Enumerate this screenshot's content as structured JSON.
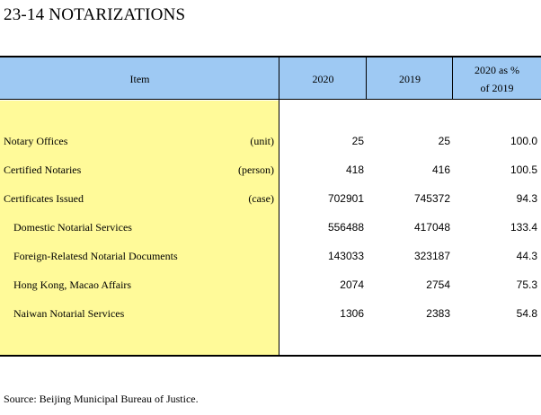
{
  "title": "23-14  NOTARIZATIONS",
  "header": {
    "item": "Item",
    "col2020": "2020",
    "col2019": "2019",
    "pct_line1": "2020 as %",
    "pct_line2": "of 2019"
  },
  "rows": [
    {
      "label": "Notary Offices",
      "unit": "(unit)",
      "v2020": "25",
      "v2019": "25",
      "pct": "100.0"
    },
    {
      "label": "Certified Notaries",
      "unit": "(person)",
      "v2020": "418",
      "v2019": "416",
      "pct": "100.5"
    },
    {
      "label": "Certificates Issued",
      "unit": "(case)",
      "v2020": "702901",
      "v2019": "745372",
      "pct": "94.3"
    },
    {
      "label": "Domestic Notarial Services",
      "unit": "",
      "v2020": "556488",
      "v2019": "417048",
      "pct": "133.4"
    },
    {
      "label": "Foreign-Relatesd Notarial Documents",
      "unit": "",
      "v2020": "143033",
      "v2019": "323187",
      "pct": "44.3"
    },
    {
      "label": "Hong Kong, Macao Affairs",
      "unit": "",
      "v2020": "2074",
      "v2019": "2754",
      "pct": "75.3"
    },
    {
      "label": "Naiwan Notarial Services",
      "unit": "",
      "v2020": "1306",
      "v2019": "2383",
      "pct": "54.8"
    }
  ],
  "source": "Source: Beijing Municipal Bureau of Justice.",
  "colors": {
    "header_bg": "#9ec9f3",
    "item_column_bg": "#fffa99"
  }
}
